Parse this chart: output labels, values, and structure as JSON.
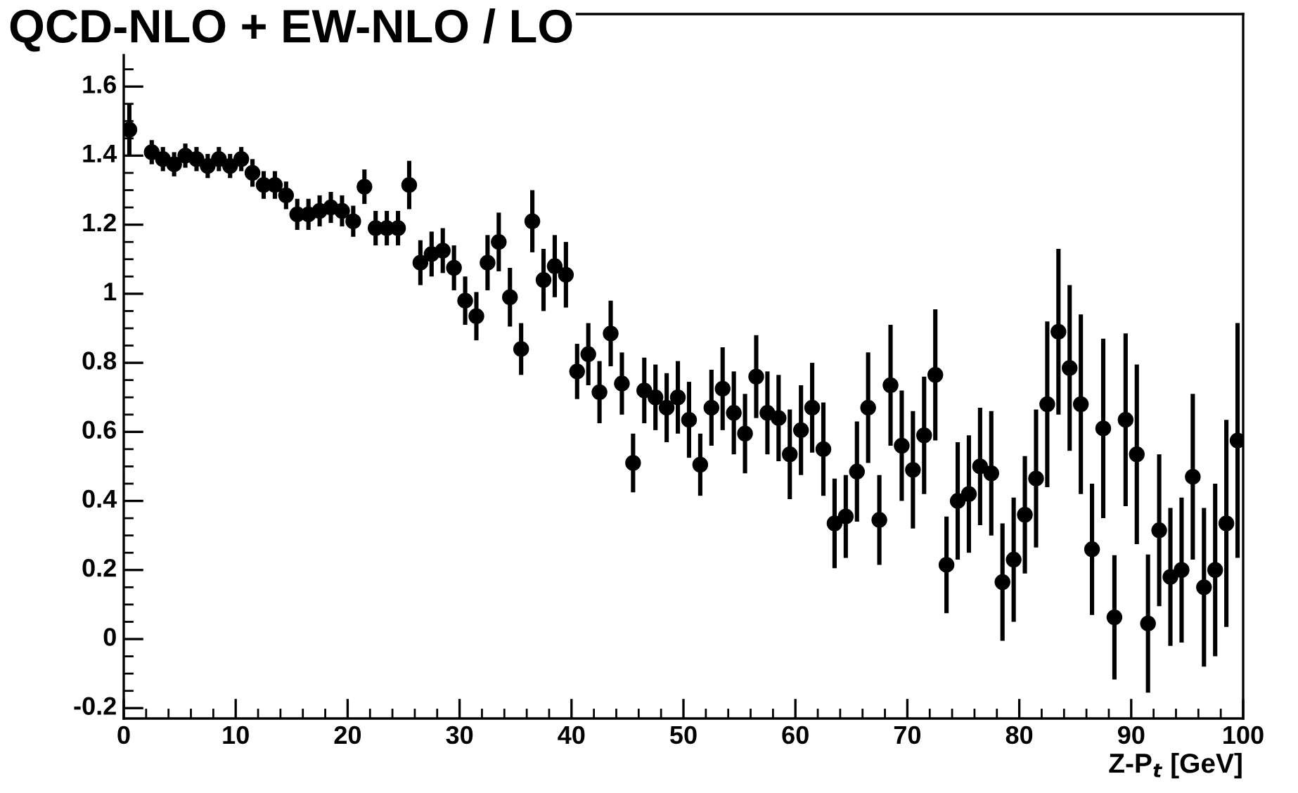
{
  "chart_data": {
    "type": "scatter",
    "title": "QCD-NLO + EW-NLO / LO",
    "xlabel": "Z-P$_{t}$ [GeV]",
    "x": [
      0.5,
      2.5,
      3.5,
      4.5,
      5.5,
      6.5,
      7.5,
      8.5,
      9.5,
      10.5,
      11.5,
      12.5,
      13.5,
      14.5,
      15.5,
      16.5,
      17.5,
      18.5,
      19.5,
      20.5,
      21.5,
      22.5,
      23.5,
      24.5,
      25.5,
      26.5,
      27.5,
      28.5,
      29.5,
      30.5,
      31.5,
      32.5,
      33.5,
      34.5,
      35.5,
      36.5,
      37.5,
      38.5,
      39.5,
      40.5,
      41.5,
      42.5,
      43.5,
      44.5,
      45.5,
      46.5,
      47.5,
      48.5,
      49.5,
      50.5,
      51.5,
      52.5,
      53.5,
      54.5,
      55.5,
      56.5,
      57.5,
      58.5,
      59.5,
      60.5,
      61.5,
      62.5,
      63.5,
      64.5,
      65.5,
      66.5,
      67.5,
      68.5,
      69.5,
      70.5,
      71.5,
      72.5,
      73.5,
      74.5,
      75.5,
      76.5,
      77.5,
      78.5,
      79.5,
      80.5,
      81.5,
      82.5,
      83.5,
      84.5,
      85.5,
      86.5,
      87.5,
      88.5,
      89.5,
      90.5,
      91.5,
      92.5,
      93.5,
      94.5,
      95.5,
      96.5,
      97.5,
      98.5,
      99.5
    ],
    "values": [
      1.475,
      1.41,
      1.39,
      1.375,
      1.4,
      1.39,
      1.37,
      1.39,
      1.37,
      1.39,
      1.35,
      1.315,
      1.315,
      1.285,
      1.23,
      1.23,
      1.24,
      1.25,
      1.24,
      1.21,
      1.31,
      1.19,
      1.19,
      1.19,
      1.315,
      1.09,
      1.115,
      1.125,
      1.075,
      0.98,
      0.935,
      1.09,
      1.15,
      0.99,
      0.84,
      1.21,
      1.04,
      1.08,
      1.055,
      0.775,
      0.825,
      0.715,
      0.885,
      0.74,
      0.51,
      0.72,
      0.7,
      0.67,
      0.7,
      0.635,
      0.505,
      0.67,
      0.725,
      0.655,
      0.595,
      0.76,
      0.655,
      0.64,
      0.535,
      0.605,
      0.67,
      0.55,
      0.335,
      0.355,
      0.485,
      0.67,
      0.345,
      0.735,
      0.56,
      0.49,
      0.59,
      0.765,
      0.215,
      0.4,
      0.42,
      0.5,
      0.48,
      0.165,
      0.23,
      0.36,
      0.465,
      0.68,
      0.89,
      0.785,
      0.68,
      0.26,
      0.61,
      0.063,
      0.635,
      0.535,
      0.045,
      0.315,
      0.18,
      0.2,
      0.47,
      0.15,
      0.2,
      0.335,
      0.575
    ],
    "errors": [
      0.075,
      0.035,
      0.035,
      0.035,
      0.035,
      0.035,
      0.035,
      0.035,
      0.035,
      0.035,
      0.04,
      0.04,
      0.04,
      0.04,
      0.045,
      0.045,
      0.045,
      0.045,
      0.045,
      0.045,
      0.05,
      0.05,
      0.05,
      0.05,
      0.07,
      0.065,
      0.065,
      0.065,
      0.065,
      0.07,
      0.07,
      0.08,
      0.085,
      0.085,
      0.075,
      0.09,
      0.09,
      0.09,
      0.095,
      0.08,
      0.09,
      0.09,
      0.095,
      0.09,
      0.085,
      0.095,
      0.095,
      0.1,
      0.105,
      0.11,
      0.09,
      0.11,
      0.12,
      0.12,
      0.115,
      0.12,
      0.12,
      0.125,
      0.13,
      0.13,
      0.13,
      0.135,
      0.13,
      0.12,
      0.145,
      0.16,
      0.13,
      0.175,
      0.16,
      0.17,
      0.17,
      0.19,
      0.14,
      0.17,
      0.17,
      0.17,
      0.18,
      0.17,
      0.18,
      0.17,
      0.2,
      0.24,
      0.24,
      0.24,
      0.26,
      0.19,
      0.26,
      0.18,
      0.25,
      0.26,
      0.2,
      0.22,
      0.2,
      0.21,
      0.24,
      0.23,
      0.25,
      0.3,
      0.34
    ],
    "color": "#000000",
    "marker": "circle",
    "xlim": [
      0,
      100
    ],
    "ylim": [
      -0.23,
      1.81
    ],
    "xticks": [
      0,
      10,
      20,
      30,
      40,
      50,
      60,
      70,
      80,
      90,
      100,
      {
        "value": 2,
        "label": null
      },
      {
        "value": 4,
        "label": null
      },
      {
        "value": 6,
        "label": null
      },
      {
        "value": 8,
        "label": null
      },
      {
        "value": 12,
        "label": null
      },
      {
        "value": 14,
        "label": null
      },
      {
        "value": 16,
        "label": null
      },
      {
        "value": 18,
        "label": null
      },
      {
        "value": 22,
        "label": null
      },
      {
        "value": 24,
        "label": null
      },
      {
        "value": 26,
        "label": null
      },
      {
        "value": 28,
        "label": null
      },
      {
        "value": 32,
        "label": null
      },
      {
        "value": 34,
        "label": null
      },
      {
        "value": 36,
        "label": null
      },
      {
        "value": 38,
        "label": null
      },
      {
        "value": 42,
        "label": null
      },
      {
        "value": 44,
        "label": null
      },
      {
        "value": 46,
        "label": null
      },
      {
        "value": 48,
        "label": null
      },
      {
        "value": 52,
        "label": null
      },
      {
        "value": 54,
        "label": null
      },
      {
        "value": 56,
        "label": null
      },
      {
        "value": 58,
        "label": null
      },
      {
        "value": 62,
        "label": null
      },
      {
        "value": 64,
        "label": null
      },
      {
        "value": 66,
        "label": null
      },
      {
        "value": 68,
        "label": null
      },
      {
        "value": 72,
        "label": null
      },
      {
        "value": 74,
        "label": null
      },
      {
        "value": 76,
        "label": null
      },
      {
        "value": 78,
        "label": null
      },
      {
        "value": 82,
        "label": null
      },
      {
        "value": 84,
        "label": null
      },
      {
        "value": 86,
        "label": null
      },
      {
        "value": 88,
        "label": null
      },
      {
        "value": 92,
        "label": null
      },
      {
        "value": 94,
        "label": null
      },
      {
        "value": 96,
        "label": null
      },
      {
        "value": 98,
        "label": null
      }
    ],
    "yticks": [
      -0.2,
      0,
      0.2,
      0.4,
      0.6,
      0.8,
      1,
      1.2,
      1.4,
      1.6,
      {
        "value": -0.15,
        "label": null
      },
      {
        "value": -0.1,
        "label": null
      },
      {
        "value": -0.05,
        "label": null
      },
      {
        "value": 0.05,
        "label": null
      },
      {
        "value": 0.1,
        "label": null
      },
      {
        "value": 0.15,
        "label": null
      },
      {
        "value": 0.25,
        "label": null
      },
      {
        "value": 0.3,
        "label": null
      },
      {
        "value": 0.35,
        "label": null
      },
      {
        "value": 0.45,
        "label": null
      },
      {
        "value": 0.5,
        "label": null
      },
      {
        "value": 0.55,
        "label": null
      },
      {
        "value": 0.65,
        "label": null
      },
      {
        "value": 0.7,
        "label": null
      },
      {
        "value": 0.75,
        "label": null
      },
      {
        "value": 0.85,
        "label": null
      },
      {
        "value": 0.9,
        "label": null
      },
      {
        "value": 0.95,
        "label": null
      },
      {
        "value": 1.05,
        "label": null
      },
      {
        "value": 1.1,
        "label": null
      },
      {
        "value": 1.15,
        "label": null
      },
      {
        "value": 1.25,
        "label": null
      },
      {
        "value": 1.3,
        "label": null
      },
      {
        "value": 1.35,
        "label": null
      },
      {
        "value": 1.45,
        "label": null
      },
      {
        "value": 1.5,
        "label": null
      },
      {
        "value": 1.55,
        "label": null
      },
      {
        "value": 1.65,
        "label": null
      },
      {
        "value": 1.7,
        "label": null
      },
      {
        "value": 1.75,
        "label": null
      }
    ],
    "grid": false
  }
}
